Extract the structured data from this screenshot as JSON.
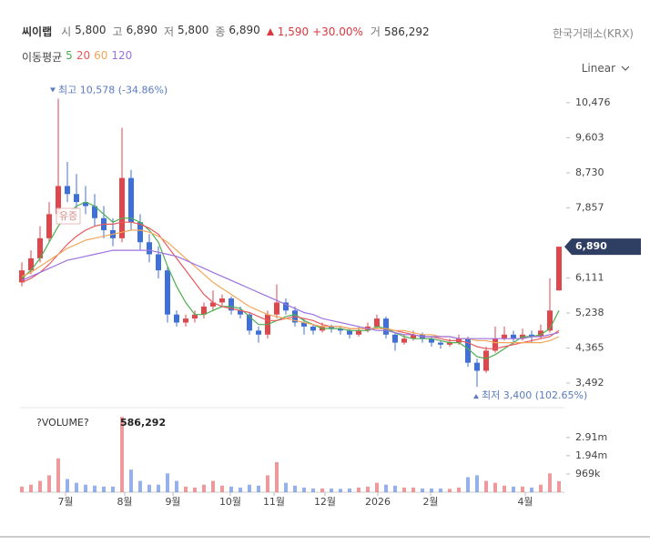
{
  "header": {
    "name": "씨이랩",
    "fields": [
      {
        "label": "시",
        "value": "5,800"
      },
      {
        "label": "고",
        "value": "6,890"
      },
      {
        "label": "저",
        "value": "5,800"
      },
      {
        "label": "종",
        "value": "6,890"
      }
    ],
    "change": "1,590",
    "change_pct": "+30.00%",
    "volume_label": "거",
    "volume": "586,292",
    "exchange": "한국거래소(KRX)",
    "ma_label": "이동평균",
    "scale_mode": "Linear"
  },
  "chart_data": {
    "type": "candlestick",
    "ylim": [
      2950,
      10880
    ],
    "yticks": [
      {
        "value": 10476,
        "label": "10,476"
      },
      {
        "value": 9603,
        "label": "9,603"
      },
      {
        "value": 8730,
        "label": "8,730"
      },
      {
        "value": 7857,
        "label": "7,857"
      },
      {
        "value": 6111,
        "label": "6,111"
      },
      {
        "value": 5238,
        "label": "5,238"
      },
      {
        "value": 4365,
        "label": "4,365"
      },
      {
        "value": 3492,
        "label": "3,492"
      }
    ],
    "xlim": [
      0,
      59
    ],
    "xticks": [
      {
        "value": 4.8,
        "label": "7월"
      },
      {
        "value": 11.3,
        "label": "8월"
      },
      {
        "value": 16.6,
        "label": "9월"
      },
      {
        "value": 22.9,
        "label": "10월"
      },
      {
        "value": 27.7,
        "label": "11월"
      },
      {
        "value": 33.3,
        "label": "12월"
      },
      {
        "value": 39.1,
        "label": "2026"
      },
      {
        "value": 44.9,
        "label": "2월"
      },
      {
        "value": 55.3,
        "label": "4월"
      }
    ],
    "up_color": "#e0474c",
    "down_color": "#3f6fd8",
    "open": [
      6000,
      6300,
      6600,
      7100,
      7700,
      8400,
      8200,
      8000,
      7900,
      7600,
      7300,
      7100,
      8600,
      7500,
      7000,
      6700,
      6300,
      5200,
      5000,
      5100,
      5200,
      5400,
      5500,
      5600,
      5300,
      5200,
      4800,
      4700,
      5200,
      5500,
      5300,
      5000,
      4900,
      4800,
      4900,
      4850,
      4800,
      4700,
      4800,
      4900,
      5100,
      4700,
      4500,
      4600,
      4700,
      4600,
      4500,
      4450,
      4500,
      4600,
      4000,
      3800,
      4300,
      4600,
      4700,
      4600,
      4700,
      4650,
      4800,
      5800
    ],
    "high": [
      6500,
      6800,
      7400,
      8000,
      10578,
      9000,
      8700,
      8400,
      8200,
      7900,
      7600,
      9850,
      8800,
      7700,
      7200,
      6900,
      6400,
      5300,
      5200,
      5300,
      5500,
      5800,
      5700,
      5650,
      5400,
      5250,
      4900,
      5300,
      5950,
      5600,
      5400,
      5100,
      4950,
      5000,
      4950,
      4900,
      4850,
      4900,
      5000,
      5200,
      5150,
      4750,
      4700,
      4800,
      4750,
      4650,
      4550,
      4600,
      4700,
      4650,
      4100,
      4400,
      4900,
      4900,
      4800,
      4850,
      4800,
      4950,
      6100,
      6890
    ],
    "low": [
      5900,
      6200,
      6500,
      7000,
      7600,
      8000,
      7800,
      7700,
      7400,
      7100,
      6900,
      7000,
      7300,
      6800,
      6500,
      6100,
      5000,
      4900,
      4900,
      5000,
      5100,
      5300,
      5400,
      5200,
      5100,
      4700,
      4500,
      4600,
      5100,
      5200,
      4900,
      4700,
      4700,
      4750,
      4750,
      4700,
      4600,
      4650,
      4750,
      4850,
      4600,
      4300,
      4450,
      4550,
      4500,
      4400,
      4350,
      4400,
      4450,
      3900,
      3400,
      3750,
      4250,
      4550,
      4450,
      4550,
      4500,
      4600,
      4750,
      5800
    ],
    "close": [
      6300,
      6600,
      7100,
      7700,
      8400,
      8200,
      8000,
      7900,
      7600,
      7300,
      7100,
      8600,
      7500,
      7000,
      6700,
      6300,
      5200,
      5000,
      5100,
      5200,
      5400,
      5500,
      5600,
      5300,
      5200,
      4800,
      4700,
      5200,
      5500,
      5300,
      5000,
      4900,
      4800,
      4900,
      4850,
      4800,
      4700,
      4800,
      4900,
      5100,
      4700,
      4500,
      4600,
      4700,
      4600,
      4500,
      4450,
      4500,
      4600,
      4000,
      3800,
      4300,
      4600,
      4700,
      4600,
      4700,
      4650,
      4800,
      5300,
      6890
    ],
    "series": [
      {
        "name": "5",
        "color": "#4caf50",
        "values": [
          6100,
          6300,
          6600,
          7000,
          7400,
          7700,
          7900,
          8000,
          7900,
          7700,
          7500,
          7600,
          7600,
          7500,
          7300,
          7000,
          6400,
          5900,
          5500,
          5200,
          5200,
          5300,
          5400,
          5400,
          5350,
          5150,
          4950,
          4950,
          5050,
          5150,
          5200,
          5050,
          4950,
          4850,
          4850,
          4850,
          4800,
          4800,
          4800,
          4900,
          4850,
          4750,
          4650,
          4600,
          4600,
          4600,
          4550,
          4500,
          4500,
          4350,
          4150,
          4100,
          4200,
          4350,
          4500,
          4650,
          4650,
          4700,
          4850,
          5300
        ]
      },
      {
        "name": "20",
        "color": "#e8585c",
        "values": [
          6000,
          6100,
          6250,
          6450,
          6700,
          6950,
          7150,
          7300,
          7400,
          7450,
          7450,
          7500,
          7500,
          7450,
          7350,
          7200,
          6900,
          6600,
          6300,
          6000,
          5700,
          5500,
          5400,
          5350,
          5300,
          5250,
          5150,
          5050,
          5050,
          5100,
          5150,
          5100,
          5050,
          4950,
          4900,
          4900,
          4850,
          4850,
          4850,
          4850,
          4850,
          4800,
          4750,
          4700,
          4650,
          4650,
          4600,
          4550,
          4550,
          4500,
          4400,
          4350,
          4350,
          4400,
          4450,
          4500,
          4550,
          4600,
          4650,
          4800
        ]
      },
      {
        "name": "60",
        "color": "#f2a65a",
        "values": [
          6150,
          6250,
          6400,
          6550,
          6700,
          6850,
          6950,
          7050,
          7100,
          7150,
          7200,
          7250,
          7300,
          7300,
          7250,
          7150,
          7000,
          6800,
          6600,
          6400,
          6200,
          6000,
          5850,
          5700,
          5550,
          5400,
          5300,
          5200,
          5150,
          5100,
          5050,
          5000,
          4950,
          4900,
          4900,
          4900,
          4850,
          4850,
          4850,
          4850,
          4850,
          4800,
          4800,
          4750,
          4700,
          4700,
          4650,
          4650,
          4600,
          4600,
          4550,
          4550,
          4500,
          4500,
          4500,
          4500,
          4500,
          4500,
          4550,
          4650
        ]
      },
      {
        "name": "120",
        "color": "#9b72e0",
        "values": [
          6050,
          6150,
          6250,
          6350,
          6450,
          6550,
          6600,
          6650,
          6700,
          6750,
          6800,
          6800,
          6800,
          6800,
          6800,
          6750,
          6700,
          6650,
          6550,
          6450,
          6350,
          6250,
          6150,
          6050,
          5950,
          5850,
          5750,
          5650,
          5550,
          5450,
          5350,
          5250,
          5200,
          5100,
          5050,
          5000,
          4950,
          4900,
          4850,
          4800,
          4800,
          4750,
          4700,
          4700,
          4650,
          4650,
          4650,
          4650,
          4600,
          4600,
          4600,
          4600,
          4600,
          4600,
          4600,
          4600,
          4650,
          4650,
          4700,
          4750
        ]
      }
    ],
    "current_price": {
      "value": 6890,
      "label": "6,890"
    },
    "max_annotation": "최고 10,578 (-34.86%)",
    "min_annotation": "최저 3,400 (102.65%)",
    "event_label": "유증",
    "volume_title": "?VOLUME?",
    "volume_value": "586,292",
    "volume_ylim": [
      0,
      4300000
    ],
    "volume_ticks": [
      {
        "value": 2910000,
        "label": "2.91m"
      },
      {
        "value": 1940000,
        "label": "1.94m"
      },
      {
        "value": 969000,
        "label": "969k"
      }
    ],
    "volume": [
      300000,
      400000,
      600000,
      900000,
      1800000,
      700000,
      500000,
      400000,
      350000,
      300000,
      300000,
      4000000,
      1200000,
      600000,
      400000,
      400000,
      1000000,
      600000,
      300000,
      250000,
      400000,
      600000,
      350000,
      300000,
      250000,
      400000,
      350000,
      900000,
      1600000,
      500000,
      350000,
      250000,
      200000,
      200000,
      200000,
      180000,
      200000,
      250000,
      300000,
      500000,
      400000,
      350000,
      250000,
      250000,
      200000,
      200000,
      200000,
      180000,
      250000,
      800000,
      900000,
      600000,
      500000,
      350000,
      300000,
      300000,
      250000,
      400000,
      1000000,
      586292
    ]
  }
}
